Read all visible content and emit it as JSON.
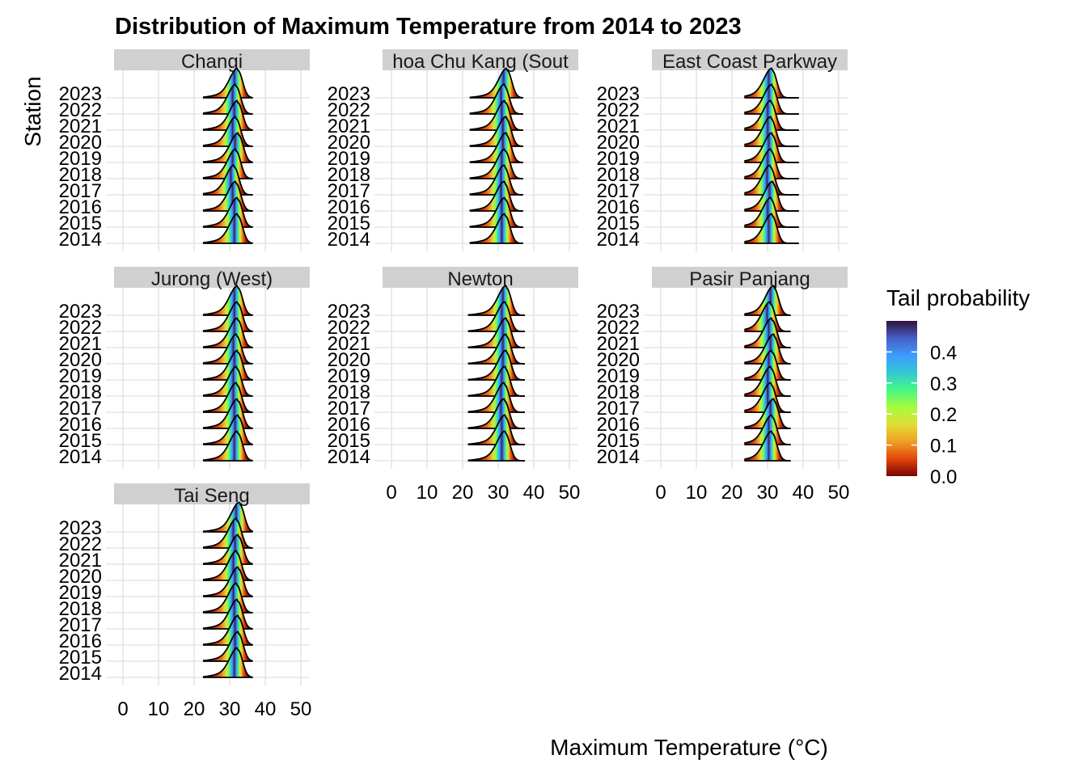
{
  "chart_data": {
    "type": "ridgeline",
    "title": "Distribution of Maximum Temperature from 2014 to 2023",
    "xlabel": "Maximum Temperature (°C)",
    "ylabel": "Station",
    "xlim": [
      0,
      50
    ],
    "x_ticks": [
      "0",
      "10",
      "20",
      "30",
      "40",
      "50"
    ],
    "y_categories": [
      "2014",
      "2015",
      "2016",
      "2017",
      "2018",
      "2019",
      "2020",
      "2021",
      "2022",
      "2023"
    ],
    "grid": true,
    "facets": [
      {
        "strip": "Changi",
        "range": [
          22.5,
          36.5
        ],
        "peaks": [
          32.3,
          32.3,
          31.8,
          31.3,
          31.8,
          32.5,
          31.8,
          32.3,
          31.8,
          32.3
        ]
      },
      {
        "strip": "hoa Chu Kang (Sout",
        "range": [
          22.0,
          37.0
        ],
        "peaks": [
          32.0,
          32.0,
          31.8,
          31.8,
          32.0,
          32.3,
          32.3,
          32.0,
          31.8,
          32.5
        ]
      },
      {
        "strip": "East Coast Parkway",
        "range": [
          23.5,
          38.8
        ],
        "peaks": [
          31.3,
          31.0,
          31.5,
          30.8,
          31.0,
          31.3,
          31.0,
          31.0,
          31.3,
          31.3
        ]
      },
      {
        "strip": "Jurong (West)",
        "range": [
          22.5,
          36.5
        ],
        "peaks": [
          32.3,
          32.5,
          32.3,
          32.0,
          32.0,
          32.3,
          32.0,
          32.3,
          32.3,
          32.3
        ]
      },
      {
        "strip": "Newton",
        "range": [
          21.5,
          37.5
        ],
        "peaks": [
          32.0,
          32.0,
          31.8,
          31.8,
          32.0,
          32.3,
          32.3,
          32.3,
          32.0,
          32.3
        ]
      },
      {
        "strip": "Pasir Panjang",
        "range": [
          23.5,
          36.5
        ],
        "peaks": [
          31.3,
          31.3,
          31.8,
          31.0,
          31.0,
          31.3,
          31.8,
          31.3,
          30.8,
          31.8
        ]
      },
      {
        "strip": "Tai Seng",
        "range": [
          22.5,
          36.5
        ],
        "peaks": [
          32.3,
          32.5,
          32.5,
          32.3,
          32.0,
          32.5,
          32.0,
          32.5,
          32.0,
          32.8
        ]
      }
    ],
    "legend": {
      "title": "Tail probability",
      "position": "right",
      "range": [
        0.0,
        0.5
      ],
      "ticks": [
        "0.0",
        "0.1",
        "0.2",
        "0.3",
        "0.4"
      ],
      "palette": [
        "#7a0403",
        "#e4460a",
        "#f0a024",
        "#e1dd37",
        "#a4fc3c",
        "#46f884",
        "#33c8d6",
        "#3e9bfe",
        "#4660c6",
        "#30123b"
      ]
    },
    "line_color": "#000000",
    "strip_color": "#d0d0d0",
    "grid_color": "#e5e5e5"
  }
}
